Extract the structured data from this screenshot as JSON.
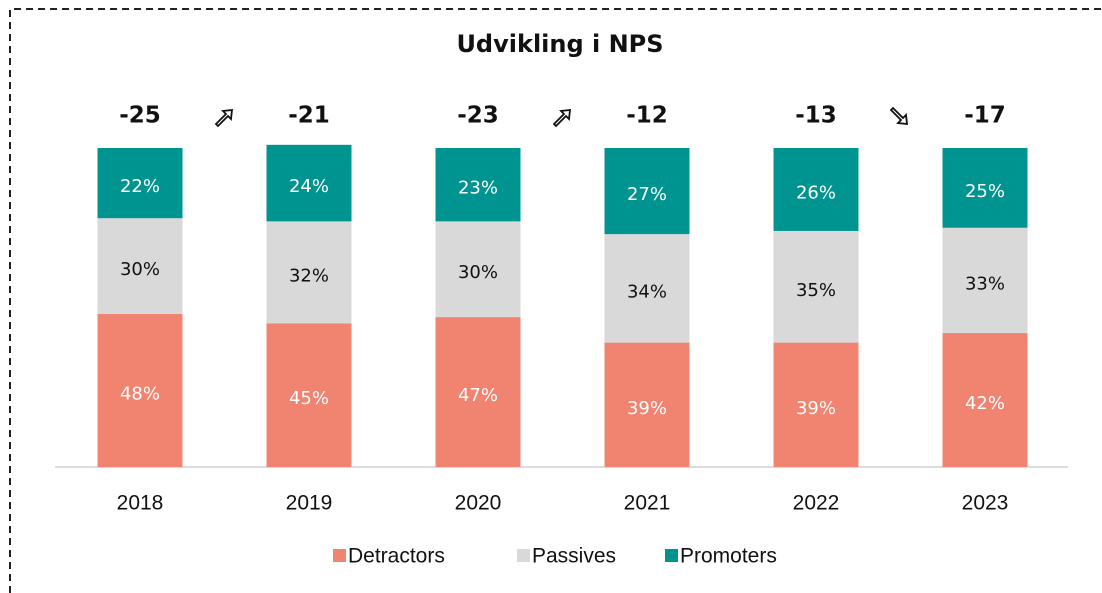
{
  "chart_data": {
    "type": "stacked_bar",
    "title": "Udvikling i NPS",
    "categories": [
      "2018",
      "2019",
      "2020",
      "2021",
      "2022",
      "2023"
    ],
    "nps_scores": [
      -25,
      -21,
      -23,
      -12,
      -13,
      -17
    ],
    "series": [
      {
        "name": "Detractors",
        "color": "#f08470",
        "values": [
          48,
          45,
          47,
          39,
          39,
          42
        ],
        "value_labels": [
          "48%",
          "45%",
          "47%",
          "39%",
          "39%",
          "42%"
        ]
      },
      {
        "name": "Passives",
        "color": "#d9d9d9",
        "values": [
          30,
          32,
          30,
          34,
          35,
          33
        ],
        "value_labels": [
          "30%",
          "32%",
          "30%",
          "34%",
          "35%",
          "33%"
        ]
      },
      {
        "name": "Promoters",
        "color": "#009490",
        "values": [
          22,
          24,
          23,
          27,
          26,
          25
        ],
        "value_labels": [
          "22%",
          "24%",
          "23%",
          "27%",
          "26%",
          "25%"
        ]
      }
    ],
    "ylim": [
      0,
      100
    ],
    "legend": "bottom"
  }
}
